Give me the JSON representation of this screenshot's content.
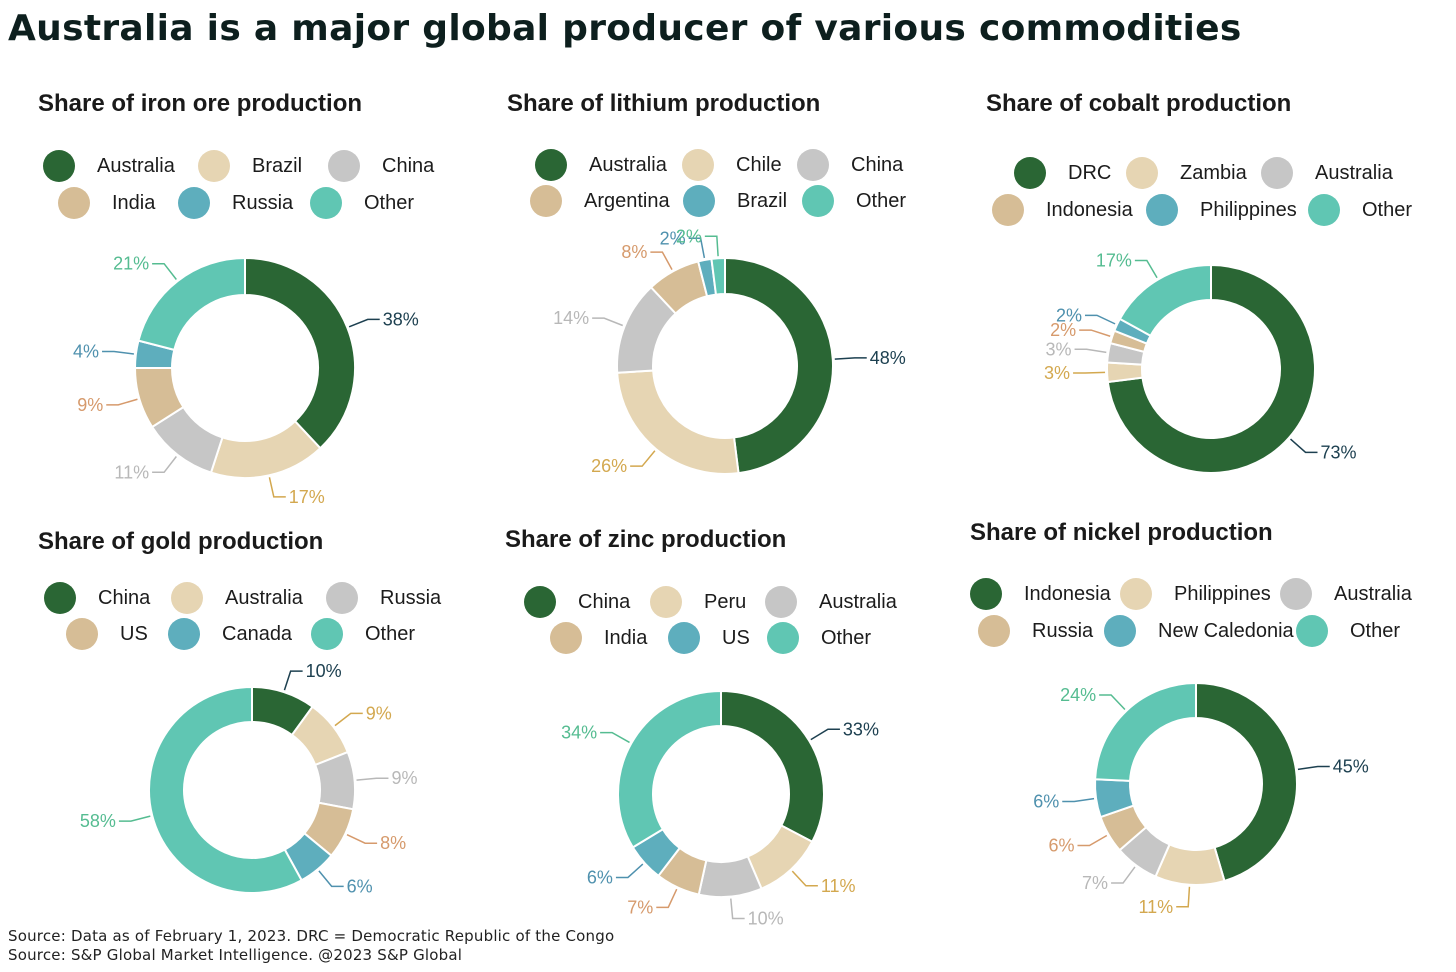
{
  "title": "Australia is a major global producer of various commodities",
  "source_lines": [
    "Source: Data as of February 1, 2023. DRC = Democratic Republic of the Congo",
    "Source: S&P Global Market Intelligence. @2023 S&P Global"
  ],
  "colors": {
    "c1": "#2a6634",
    "c2": "#e6d5b3",
    "c3": "#c6c6c6",
    "c4": "#d6bd96",
    "c5": "#5eaebd",
    "c6": "#60c6b3"
  },
  "label_colors": {
    "c1": "#1d4050",
    "c2": "#d3a84f",
    "c3": "#b8b8b8",
    "c4": "#d69a6c",
    "c5": "#4f91ae",
    "c6": "#55bc91"
  },
  "chart_data": [
    {
      "type": "pie",
      "title": "Share of iron ore production",
      "categories": [
        "Australia",
        "Brazil",
        "China",
        "India",
        "Russia",
        "Other"
      ],
      "values": [
        38,
        17,
        11,
        9,
        4,
        21
      ],
      "labels": [
        "38%",
        "17%",
        "11%",
        "9%",
        "4%",
        "21%"
      ],
      "legend": "top"
    },
    {
      "type": "pie",
      "title": "Share of lithium production",
      "categories": [
        "Australia",
        "Chile",
        "China",
        "Argentina",
        "Brazil",
        "Other"
      ],
      "values": [
        48,
        26,
        14,
        8,
        2,
        2
      ],
      "labels": [
        "48%",
        "26%",
        "14%",
        "8%",
        "2%",
        "2%"
      ],
      "legend": "top"
    },
    {
      "type": "pie",
      "title": "Share of cobalt production",
      "categories": [
        "DRC",
        "Zambia",
        "Australia",
        "Indonesia",
        "Philippines",
        "Other"
      ],
      "values": [
        73,
        3,
        3,
        2,
        2,
        17
      ],
      "labels": [
        "73%",
        "3%",
        "3%",
        "2%",
        "2%",
        "17%"
      ],
      "legend": "top"
    },
    {
      "type": "pie",
      "title": "Share of gold production",
      "categories": [
        "China",
        "Australia",
        "Russia",
        "US",
        "Canada",
        "Other"
      ],
      "values": [
        10,
        9,
        9,
        8,
        6,
        58
      ],
      "labels": [
        "10%",
        "9%",
        "9%",
        "8%",
        "6%",
        "58%"
      ],
      "legend": "top"
    },
    {
      "type": "pie",
      "title": "Share of zinc production",
      "categories": [
        "China",
        "Peru",
        "Australia",
        "India",
        "US",
        "Other"
      ],
      "values": [
        33,
        11,
        10,
        7,
        6,
        34
      ],
      "labels": [
        "33%",
        "11%",
        "10%",
        "7%",
        "6%",
        "34%"
      ],
      "legend": "top"
    },
    {
      "type": "pie",
      "title": "Share of nickel production",
      "categories": [
        "Indonesia",
        "Philippines",
        "Australia",
        "Russia",
        "New Caledonia",
        "Other"
      ],
      "values": [
        45,
        11,
        7,
        6,
        6,
        24
      ],
      "labels": [
        "45%",
        "11%",
        "7%",
        "6%",
        "6%",
        "24%"
      ],
      "legend": "top"
    }
  ]
}
